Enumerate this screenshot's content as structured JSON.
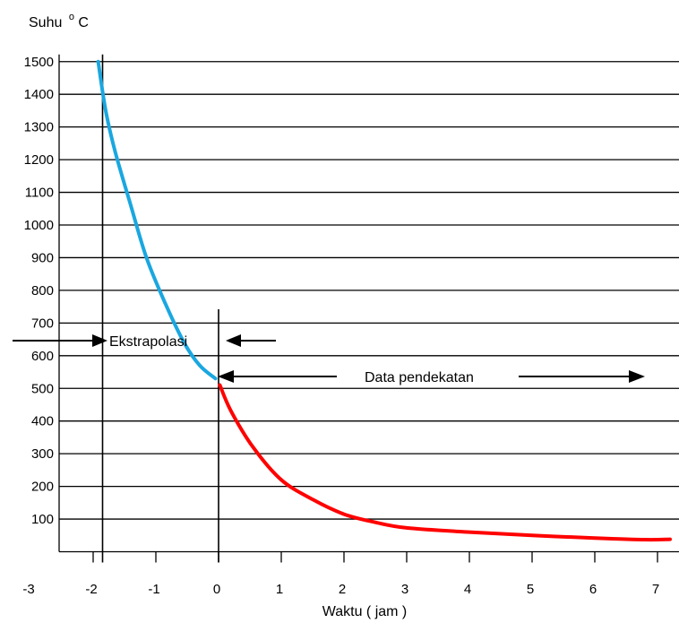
{
  "chart_data": {
    "type": "line",
    "title": "",
    "ylabel": "Suhu",
    "ylabel_sup": "o",
    "ylabel_unit": "C",
    "xlabel": "Waktu ( jam )",
    "xlim": [
      -3,
      7.2
    ],
    "ylim": [
      0,
      1500
    ],
    "x_ticks": [
      -3,
      -2,
      -1,
      0,
      1,
      2,
      3,
      4,
      5,
      6,
      7
    ],
    "x_tick_labels": [
      "-3",
      "-2",
      "-1",
      "0",
      "1",
      "2",
      "3",
      "4",
      "5",
      "6",
      "7"
    ],
    "y_ticks": [
      100,
      200,
      300,
      400,
      500,
      600,
      700,
      800,
      900,
      1000,
      1100,
      1200,
      1300,
      1400,
      1500
    ],
    "y_tick_labels": [
      "100",
      "200",
      "300",
      "400",
      "500",
      "600",
      "700",
      "800",
      "900",
      "1000",
      "1100",
      "1200",
      "1300",
      "1400",
      "1500"
    ],
    "grid": true,
    "reference_lines_x": [
      -1.85,
      0
    ],
    "series": [
      {
        "color": "#1aa7e0",
        "style": "line",
        "points": [
          [
            -1.92,
            1500
          ],
          [
            -1.8,
            1350
          ],
          [
            -1.65,
            1225
          ],
          [
            -1.4,
            1060
          ],
          [
            -1.15,
            900
          ],
          [
            -0.85,
            760
          ],
          [
            -0.55,
            640
          ],
          [
            -0.3,
            570
          ],
          [
            -0.05,
            530
          ]
        ]
      },
      {
        "color": "#ff0000",
        "style": "line",
        "points": [
          [
            0.02,
            510
          ],
          [
            0.2,
            430
          ],
          [
            0.55,
            320
          ],
          [
            1.0,
            220
          ],
          [
            1.5,
            160
          ],
          [
            2.0,
            115
          ],
          [
            2.5,
            90
          ],
          [
            3.0,
            73
          ],
          [
            4.0,
            60
          ],
          [
            5.0,
            50
          ],
          [
            6.0,
            42
          ],
          [
            6.8,
            37
          ],
          [
            7.2,
            38
          ]
        ]
      }
    ],
    "annotations": [
      {
        "text": "Ekstrapolasi",
        "x": -1.8,
        "y": 655
      },
      {
        "text": "Data pendekatan",
        "x": 4.7,
        "y": 555
      }
    ]
  }
}
